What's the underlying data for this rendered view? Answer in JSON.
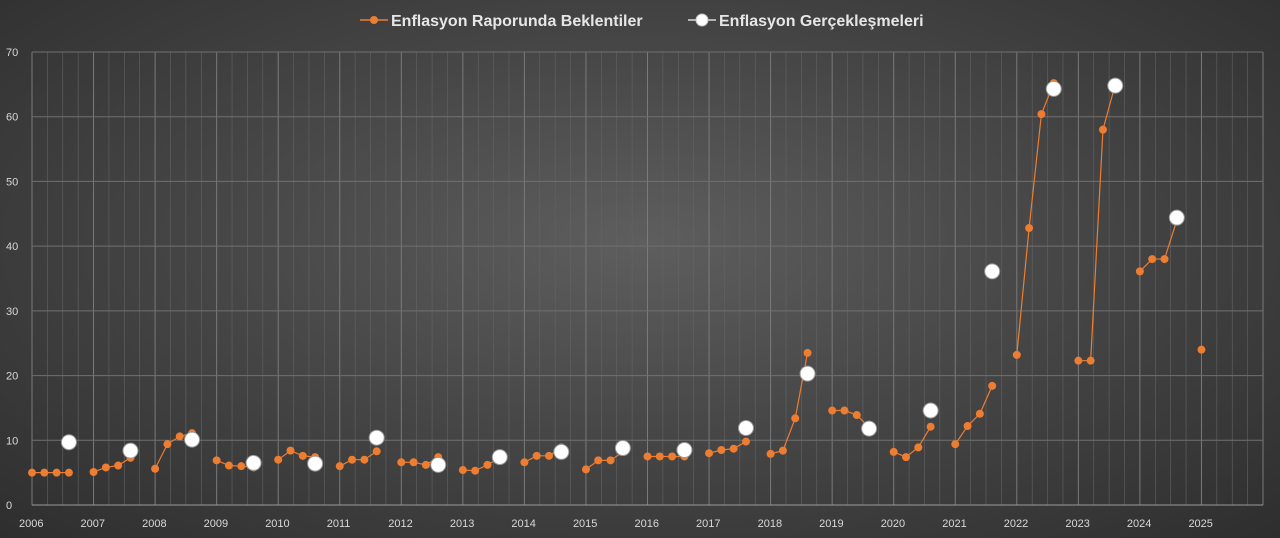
{
  "chart_data": {
    "type": "line",
    "title": "",
    "xlabel": "",
    "ylabel": "",
    "ylim": [
      0,
      70
    ],
    "xlim": [
      2006,
      2026
    ],
    "y_ticks": [
      "0",
      "10",
      "20",
      "30",
      "40",
      "50",
      "60",
      "70"
    ],
    "x_ticks": [
      "2006",
      "2007",
      "2008",
      "2009",
      "2010",
      "2011",
      "2012",
      "2013",
      "2014",
      "2015",
      "2016",
      "2017",
      "2018",
      "2019",
      "2020",
      "2021",
      "2022",
      "2023",
      "2024",
      "2025"
    ],
    "grid": true,
    "legend_position": "top",
    "series": [
      {
        "name": "Enflasyon Raporunda Beklentiler",
        "color": "#ed7d31",
        "segments": [
          [
            [
              2006.0,
              5.0
            ],
            [
              2006.2,
              5.0
            ],
            [
              2006.4,
              5.0
            ],
            [
              2006.6,
              5.0
            ]
          ],
          [
            [
              2007.0,
              5.1
            ],
            [
              2007.2,
              5.8
            ],
            [
              2007.4,
              6.1
            ],
            [
              2007.6,
              7.3
            ]
          ],
          [
            [
              2008.0,
              5.6
            ],
            [
              2008.2,
              9.4
            ],
            [
              2008.4,
              10.6
            ],
            [
              2008.6,
              11.1
            ]
          ],
          [
            [
              2009.0,
              6.9
            ],
            [
              2009.2,
              6.1
            ],
            [
              2009.4,
              6.0
            ],
            [
              2009.6,
              5.8
            ]
          ],
          [
            [
              2010.0,
              7.0
            ],
            [
              2010.2,
              8.4
            ],
            [
              2010.4,
              7.6
            ],
            [
              2010.6,
              7.4
            ]
          ],
          [
            [
              2011.0,
              6.0
            ],
            [
              2011.2,
              7.0
            ],
            [
              2011.4,
              7.0
            ],
            [
              2011.6,
              8.3
            ]
          ],
          [
            [
              2012.0,
              6.6
            ],
            [
              2012.2,
              6.6
            ],
            [
              2012.4,
              6.2
            ],
            [
              2012.6,
              7.4
            ]
          ],
          [
            [
              2013.0,
              5.4
            ],
            [
              2013.2,
              5.3
            ],
            [
              2013.4,
              6.2
            ],
            [
              2013.6,
              7.3
            ]
          ],
          [
            [
              2014.0,
              6.6
            ],
            [
              2014.2,
              7.6
            ],
            [
              2014.4,
              7.6
            ],
            [
              2014.6,
              8.9
            ]
          ],
          [
            [
              2015.0,
              5.5
            ],
            [
              2015.2,
              6.9
            ],
            [
              2015.4,
              6.9
            ],
            [
              2015.6,
              8.2
            ]
          ],
          [
            [
              2016.0,
              7.5
            ],
            [
              2016.2,
              7.5
            ],
            [
              2016.4,
              7.5
            ],
            [
              2016.6,
              7.5
            ]
          ],
          [
            [
              2017.0,
              8.0
            ],
            [
              2017.2,
              8.5
            ],
            [
              2017.4,
              8.7
            ],
            [
              2017.6,
              9.8
            ]
          ],
          [
            [
              2018.0,
              7.9
            ],
            [
              2018.2,
              8.4
            ],
            [
              2018.4,
              13.4
            ],
            [
              2018.6,
              23.5
            ]
          ],
          [
            [
              2019.0,
              14.6
            ],
            [
              2019.2,
              14.6
            ],
            [
              2019.4,
              13.9
            ],
            [
              2019.6,
              12.0
            ]
          ],
          [
            [
              2020.0,
              8.2
            ],
            [
              2020.2,
              7.4
            ],
            [
              2020.4,
              8.9
            ],
            [
              2020.6,
              12.1
            ]
          ],
          [
            [
              2021.0,
              9.4
            ],
            [
              2021.2,
              12.2
            ],
            [
              2021.4,
              14.1
            ],
            [
              2021.6,
              18.4
            ]
          ],
          [
            [
              2022.0,
              23.2
            ],
            [
              2022.2,
              42.8
            ],
            [
              2022.4,
              60.4
            ],
            [
              2022.6,
              65.2
            ]
          ],
          [
            [
              2023.0,
              22.3
            ],
            [
              2023.2,
              22.3
            ],
            [
              2023.4,
              58.0
            ],
            [
              2023.6,
              65.0
            ]
          ],
          [
            [
              2024.0,
              36.1
            ],
            [
              2024.2,
              38.0
            ],
            [
              2024.4,
              38.0
            ],
            [
              2024.6,
              44.0
            ]
          ],
          [
            [
              2025.0,
              24.0
            ]
          ]
        ]
      },
      {
        "name": "Enflasyon  Gerçekleşmeleri",
        "color": "#ffffff",
        "points": [
          [
            2006.6,
            9.7
          ],
          [
            2007.6,
            8.4
          ],
          [
            2008.6,
            10.1
          ],
          [
            2009.6,
            6.5
          ],
          [
            2010.6,
            6.4
          ],
          [
            2011.6,
            10.4
          ],
          [
            2012.6,
            6.2
          ],
          [
            2013.6,
            7.4
          ],
          [
            2014.6,
            8.2
          ],
          [
            2015.6,
            8.8
          ],
          [
            2016.6,
            8.5
          ],
          [
            2017.6,
            11.9
          ],
          [
            2018.6,
            20.3
          ],
          [
            2019.6,
            11.8
          ],
          [
            2020.6,
            14.6
          ],
          [
            2021.6,
            36.1
          ],
          [
            2022.6,
            64.3
          ],
          [
            2023.6,
            64.8
          ],
          [
            2024.6,
            44.4
          ]
        ]
      }
    ]
  }
}
